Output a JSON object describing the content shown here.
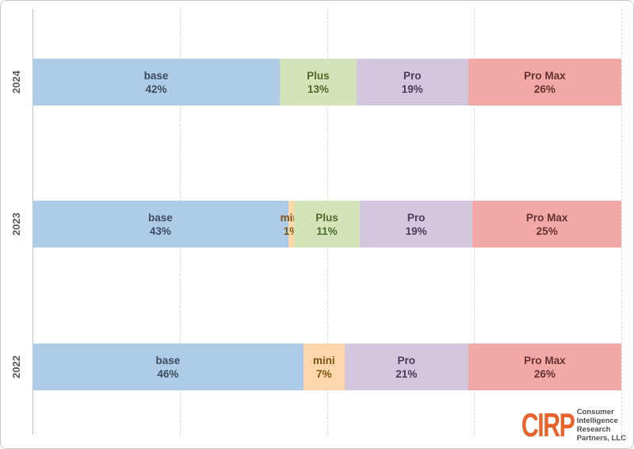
{
  "colors": {
    "segments": {
      "base": {
        "fill": "#aecbe8",
        "text": "#3b4d5f"
      },
      "mini": {
        "fill": "#fbd7ab",
        "text": "#7e5412"
      },
      "Plus": {
        "fill": "#d2e4b8",
        "text": "#51682a"
      },
      "Pro": {
        "fill": "#d3c7e0",
        "text": "#473a5a"
      },
      "Pro Max": {
        "fill": "#f2a9a6",
        "text": "#653231"
      }
    },
    "gridline": "#d8d8d8",
    "axis": "#c2c2c2",
    "year_label": "#595959",
    "logo_orange": "#e8622c",
    "logo_gray": "#4d4d4d"
  },
  "chart_data": {
    "type": "bar",
    "variant": "100%-stacked-horizontal",
    "unit": "%",
    "categories": [
      "2024",
      "2023",
      "2022"
    ],
    "segment_order": [
      "base",
      "mini",
      "Plus",
      "Pro",
      "Pro Max"
    ],
    "gridlines_pct": [
      25,
      50,
      75,
      100
    ],
    "grid": "vertical-dashed",
    "legend": "none (labels inside segments)",
    "series": [
      {
        "year": "2024",
        "parts": [
          {
            "label": "base",
            "value": 42,
            "value_text": "42%"
          },
          {
            "label": "Plus",
            "value": 13,
            "value_text": "13%"
          },
          {
            "label": "Pro",
            "value": 19,
            "value_text": "19%"
          },
          {
            "label": "Pro Max",
            "value": 26,
            "value_text": "26%"
          }
        ]
      },
      {
        "year": "2023",
        "parts": [
          {
            "label": "base",
            "value": 43,
            "value_text": "43%"
          },
          {
            "label": "mini",
            "value": 1,
            "value_text": "1%"
          },
          {
            "label": "Plus",
            "value": 11,
            "value_text": "11%"
          },
          {
            "label": "Pro",
            "value": 19,
            "value_text": "19%"
          },
          {
            "label": "Pro Max",
            "value": 25,
            "value_text": "25%"
          }
        ]
      },
      {
        "year": "2022",
        "parts": [
          {
            "label": "base",
            "value": 46,
            "value_text": "46%"
          },
          {
            "label": "mini",
            "value": 7,
            "value_text": "7%"
          },
          {
            "label": "Pro",
            "value": 21,
            "value_text": "21%"
          },
          {
            "label": "Pro Max",
            "value": 26,
            "value_text": "26%"
          }
        ]
      }
    ]
  },
  "logo": {
    "brand": "CIRP",
    "lines": [
      "Consumer",
      "Intelligence",
      "Research",
      "Partners, LLC"
    ]
  }
}
